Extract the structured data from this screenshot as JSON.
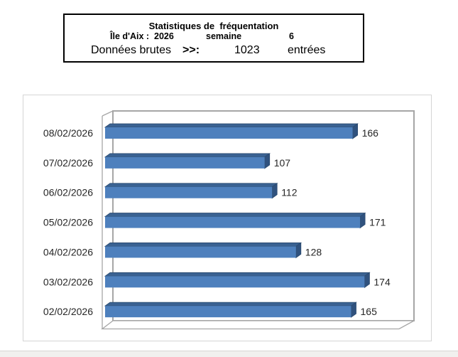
{
  "header": {
    "title": "Statistiques de  fréquentation",
    "line2": {
      "location_year": "Île d'Aix :  2026",
      "week_label": "semaine",
      "week_number": "6"
    },
    "line3": {
      "label": "Données brutes",
      "arrows": ">>:",
      "count": "1023",
      "unit": "entrées"
    }
  },
  "chart_data": {
    "type": "bar",
    "orientation": "horizontal",
    "style": "3d",
    "title": "",
    "categories": [
      "08/02/2026",
      "07/02/2026",
      "06/02/2026",
      "05/02/2026",
      "04/02/2026",
      "03/02/2026",
      "02/02/2026"
    ],
    "values": [
      166,
      107,
      112,
      171,
      128,
      174,
      165
    ],
    "data_labels_visible": true,
    "x_axis_visible": false,
    "xlim": [
      0,
      200
    ],
    "grid": false,
    "legend": false,
    "colors": {
      "bar_front": "#4e80bd",
      "bar_top": "#3a6292",
      "bar_side": "#30527e",
      "bar_edge": "#2b4a6f",
      "frame": "#a6a6a6",
      "label_text": "#262626",
      "wall_fill": "#ffffff"
    }
  }
}
